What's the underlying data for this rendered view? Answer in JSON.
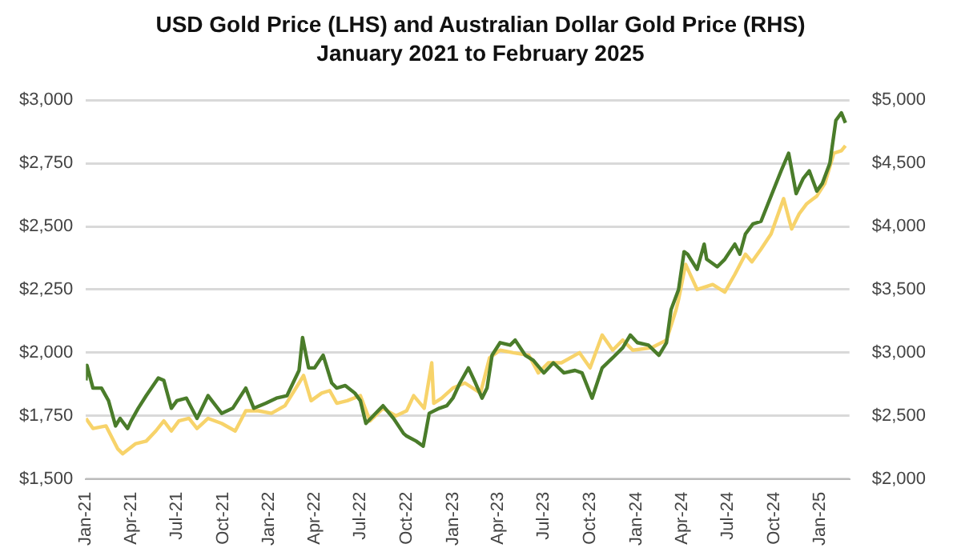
{
  "chart_data": {
    "type": "line",
    "title": "USD Gold Price (LHS) and Australian Dollar Gold Price (RHS)",
    "subtitle": "January 2021 to February 2025",
    "xlim": [
      "2021-01-01",
      "2025-02-28"
    ],
    "xticks": [
      {
        "value": "2021-01-01",
        "label": "Jan-21"
      },
      {
        "value": "2021-04-01",
        "label": "Apr-21"
      },
      {
        "value": "2021-07-01",
        "label": "Jul-21"
      },
      {
        "value": "2021-10-01",
        "label": "Oct-21"
      },
      {
        "value": "2022-01-01",
        "label": "Jan-22"
      },
      {
        "value": "2022-04-01",
        "label": "Apr-22"
      },
      {
        "value": "2022-07-01",
        "label": "Jul-22"
      },
      {
        "value": "2022-10-01",
        "label": "Oct-22"
      },
      {
        "value": "2023-01-01",
        "label": "Jan-23"
      },
      {
        "value": "2023-04-01",
        "label": "Apr-23"
      },
      {
        "value": "2023-07-01",
        "label": "Jul-23"
      },
      {
        "value": "2023-10-01",
        "label": "Oct-23"
      },
      {
        "value": "2024-01-01",
        "label": "Jan-24"
      },
      {
        "value": "2024-04-01",
        "label": "Apr-24"
      },
      {
        "value": "2024-07-01",
        "label": "Jul-24"
      },
      {
        "value": "2024-10-01",
        "label": "Oct-24"
      },
      {
        "value": "2025-01-01",
        "label": "Jan-25"
      }
    ],
    "ylim": [
      1500,
      3000
    ],
    "yticks": [
      {
        "value": 1500,
        "label": "$1,500"
      },
      {
        "value": 1750,
        "label": "$1,750"
      },
      {
        "value": 2000,
        "label": "$2,000"
      },
      {
        "value": 2250,
        "label": "$2,250"
      },
      {
        "value": 2500,
        "label": "$2,500"
      },
      {
        "value": 2750,
        "label": "$2,750"
      },
      {
        "value": 3000,
        "label": "$3,000"
      }
    ],
    "y2lim": [
      2000,
      5000
    ],
    "y2ticks": [
      {
        "value": 2000,
        "label": "$2,000"
      },
      {
        "value": 2500,
        "label": "$2,500"
      },
      {
        "value": 3000,
        "label": "$3,000"
      },
      {
        "value": 3500,
        "label": "$3,500"
      },
      {
        "value": 4000,
        "label": "$4,000"
      },
      {
        "value": 4500,
        "label": "$4,500"
      },
      {
        "value": 5000,
        "label": "$5,000"
      }
    ],
    "grid": "y",
    "legend": false,
    "marker": "none",
    "line_style": "solid",
    "series": [
      {
        "color": "#4a7c2a",
        "axis": "y",
        "x": [
          "2021-01-01",
          "2021-01-03",
          "2021-01-15",
          "2021-02-01",
          "2021-02-15",
          "2021-03-01",
          "2021-03-10",
          "2021-03-25",
          "2021-04-01",
          "2021-04-15",
          "2021-05-01",
          "2021-05-25",
          "2021-06-05",
          "2021-06-20",
          "2021-07-01",
          "2021-07-20",
          "2021-08-10",
          "2021-09-01",
          "2021-09-28",
          "2021-10-20",
          "2021-11-15",
          "2021-12-01",
          "2021-12-25",
          "2022-01-15",
          "2022-02-05",
          "2022-03-01",
          "2022-03-08",
          "2022-03-20",
          "2022-04-01",
          "2022-04-18",
          "2022-05-05",
          "2022-05-15",
          "2022-06-01",
          "2022-06-20",
          "2022-07-01",
          "2022-07-12",
          "2022-08-15",
          "2022-09-05",
          "2022-09-25",
          "2022-10-01",
          "2022-10-20",
          "2022-11-03",
          "2022-11-15",
          "2022-12-05",
          "2022-12-20",
          "2023-01-01",
          "2023-01-15",
          "2023-02-01",
          "2023-02-15",
          "2023-02-28",
          "2023-03-10",
          "2023-03-20",
          "2023-04-05",
          "2023-04-25",
          "2023-05-05",
          "2023-05-25",
          "2023-06-10",
          "2023-07-01",
          "2023-07-20",
          "2023-08-10",
          "2023-09-01",
          "2023-09-15",
          "2023-10-05",
          "2023-10-25",
          "2023-11-15",
          "2023-12-05",
          "2023-12-20",
          "2024-01-03",
          "2024-01-25",
          "2024-02-15",
          "2024-03-01",
          "2024-03-10",
          "2024-03-25",
          "2024-04-05",
          "2024-04-12",
          "2024-05-01",
          "2024-05-15",
          "2024-05-20",
          "2024-06-10",
          "2024-06-25",
          "2024-07-15",
          "2024-07-25",
          "2024-08-05",
          "2024-08-20",
          "2024-09-05",
          "2024-09-25",
          "2024-10-15",
          "2024-10-30",
          "2024-11-14",
          "2024-11-28",
          "2024-12-10",
          "2024-12-25",
          "2025-01-05",
          "2025-01-20",
          "2025-02-01",
          "2025-02-12",
          "2025-02-20"
        ],
        "values": [
          1890,
          1950,
          1860,
          1860,
          1810,
          1710,
          1740,
          1700,
          1730,
          1780,
          1830,
          1900,
          1890,
          1780,
          1810,
          1820,
          1740,
          1830,
          1760,
          1780,
          1860,
          1780,
          1800,
          1820,
          1830,
          1930,
          2060,
          1940,
          1940,
          1990,
          1880,
          1860,
          1870,
          1840,
          1810,
          1720,
          1790,
          1740,
          1680,
          1670,
          1650,
          1630,
          1760,
          1780,
          1790,
          1820,
          1880,
          1940,
          1880,
          1820,
          1860,
          1990,
          2040,
          2030,
          2050,
          1990,
          1970,
          1920,
          1960,
          1920,
          1930,
          1920,
          1820,
          1940,
          1980,
          2020,
          2070,
          2040,
          2030,
          1990,
          2040,
          2170,
          2250,
          2400,
          2390,
          2330,
          2430,
          2370,
          2340,
          2370,
          2430,
          2390,
          2470,
          2510,
          2520,
          2620,
          2720,
          2790,
          2630,
          2690,
          2720,
          2640,
          2670,
          2750,
          2920,
          2950,
          2910
        ]
      },
      {
        "color": "#f7d36a",
        "axis": "y2",
        "x": [
          "2021-01-01",
          "2021-01-15",
          "2021-02-10",
          "2021-03-05",
          "2021-03-15",
          "2021-04-10",
          "2021-05-01",
          "2021-05-20",
          "2021-06-05",
          "2021-06-20",
          "2021-07-05",
          "2021-07-25",
          "2021-08-10",
          "2021-09-01",
          "2021-09-28",
          "2021-10-25",
          "2021-11-15",
          "2021-12-10",
          "2022-01-05",
          "2022-02-01",
          "2022-03-01",
          "2022-03-10",
          "2022-03-25",
          "2022-04-15",
          "2022-05-01",
          "2022-05-15",
          "2022-06-05",
          "2022-07-01",
          "2022-07-20",
          "2022-08-15",
          "2022-09-10",
          "2022-10-01",
          "2022-10-15",
          "2022-11-05",
          "2022-11-20",
          "2022-11-24",
          "2022-12-10",
          "2023-01-01",
          "2023-01-25",
          "2023-02-25",
          "2023-03-15",
          "2023-04-05",
          "2023-05-01",
          "2023-06-01",
          "2023-06-20",
          "2023-07-10",
          "2023-08-05",
          "2023-09-10",
          "2023-10-01",
          "2023-10-25",
          "2023-11-15",
          "2023-12-05",
          "2023-12-25",
          "2024-02-01",
          "2024-03-01",
          "2024-03-20",
          "2024-03-25",
          "2024-04-08",
          "2024-05-01",
          "2024-06-01",
          "2024-06-25",
          "2024-07-15",
          "2024-08-05",
          "2024-08-18",
          "2024-09-05",
          "2024-09-25",
          "2024-10-20",
          "2024-11-05",
          "2024-11-20",
          "2024-12-05",
          "2024-12-25",
          "2025-01-10",
          "2025-01-28",
          "2025-02-12",
          "2025-02-20"
        ],
        "values": [
          2480,
          2400,
          2420,
          2240,
          2200,
          2280,
          2300,
          2380,
          2460,
          2380,
          2460,
          2480,
          2400,
          2480,
          2440,
          2380,
          2540,
          2540,
          2520,
          2580,
          2760,
          2820,
          2620,
          2680,
          2700,
          2600,
          2620,
          2660,
          2460,
          2560,
          2500,
          2540,
          2660,
          2560,
          2920,
          2600,
          2640,
          2720,
          2760,
          2680,
          2960,
          3020,
          3000,
          2980,
          2840,
          2920,
          2920,
          3000,
          2880,
          3140,
          3020,
          3100,
          3020,
          3040,
          3100,
          3340,
          3420,
          3700,
          3500,
          3540,
          3480,
          3620,
          3780,
          3720,
          3820,
          3940,
          4220,
          3980,
          4100,
          4180,
          4240,
          4340,
          4580,
          4600,
          4640
        ]
      }
    ]
  }
}
